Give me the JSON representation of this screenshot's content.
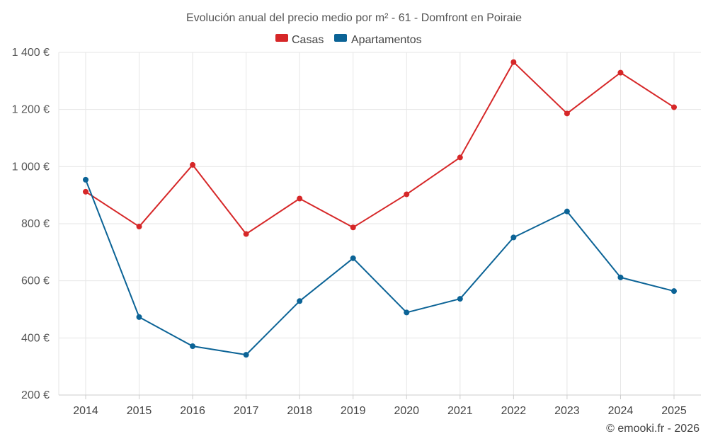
{
  "chart_data": {
    "type": "line",
    "title": "Evolución anual del precio medio por m² - 61 - Domfront en Poiraie",
    "categories": [
      "2014",
      "2015",
      "2016",
      "2017",
      "2018",
      "2019",
      "2020",
      "2021",
      "2022",
      "2023",
      "2024",
      "2025"
    ],
    "series": [
      {
        "name": "Casas",
        "color": "#d62728",
        "values": [
          912,
          790,
          1006,
          764,
          888,
          787,
          903,
          1032,
          1366,
          1186,
          1329,
          1208
        ]
      },
      {
        "name": "Apartamentos",
        "color": "#0b6396",
        "values": [
          954,
          473,
          371,
          341,
          529,
          679,
          489,
          537,
          752,
          843,
          612,
          564
        ]
      }
    ],
    "ylim": [
      200,
      1400
    ],
    "yticks": [
      200,
      400,
      600,
      800,
      1000,
      1200,
      1400
    ],
    "ytick_labels": [
      "200 €",
      "400 €",
      "600 €",
      "800 €",
      "1 000 €",
      "1 200 €",
      "1 400 €"
    ],
    "xlabel": "",
    "ylabel": "",
    "legend_position": "top-center",
    "grid": true
  },
  "credit": "© emooki.fr - 2026"
}
